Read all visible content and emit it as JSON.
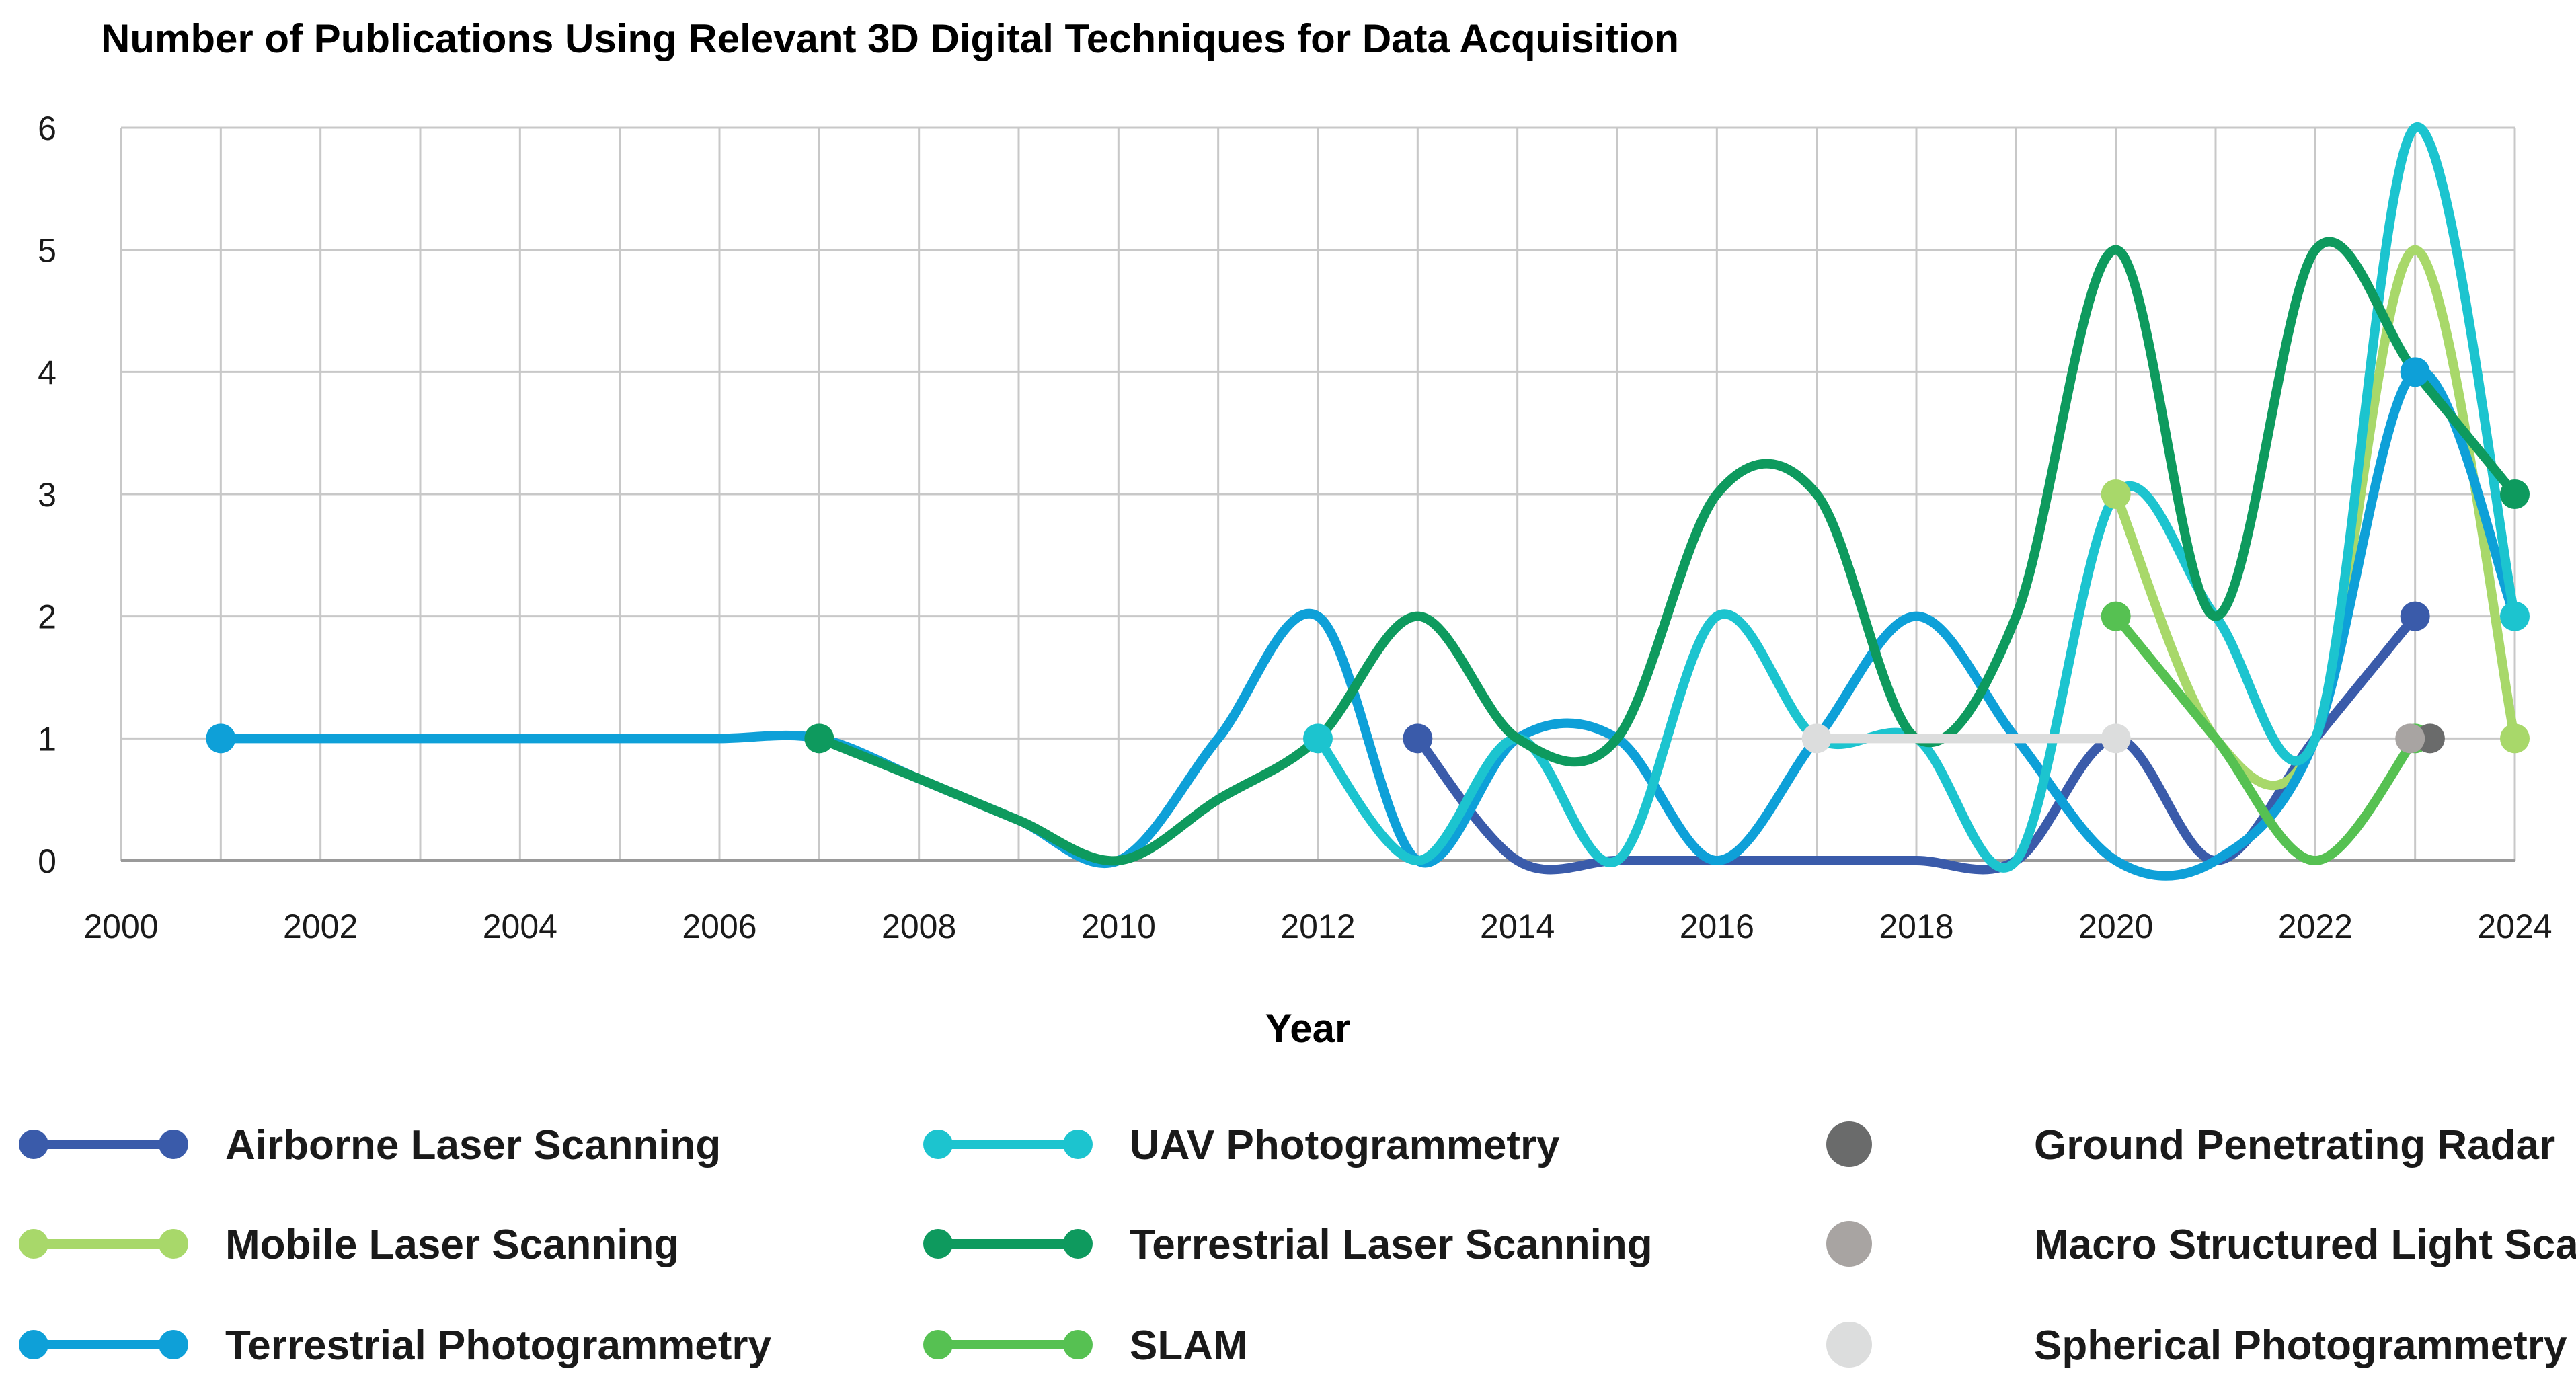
{
  "chart_data": {
    "type": "line",
    "title": "Number of Publications Using Relevant 3D Digital Techniques for Data Acquisition",
    "xlabel": "Year",
    "ylabel": "",
    "xlim": [
      2000,
      2024
    ],
    "ylim": [
      0,
      6
    ],
    "x_ticks": [
      2000,
      2002,
      2004,
      2006,
      2008,
      2010,
      2012,
      2014,
      2016,
      2018,
      2020,
      2022,
      2024
    ],
    "y_ticks": [
      0,
      1,
      2,
      3,
      4,
      5,
      6
    ],
    "grid": true,
    "legend_position": "bottom",
    "series": [
      {
        "name": "Airborne Laser Scanning",
        "color": "#3A5BAA",
        "x": [
          2013,
          2014,
          2015,
          2016,
          2017,
          2018,
          2019,
          2020,
          2021,
          2022,
          2023
        ],
        "y": [
          1,
          0,
          0,
          0,
          0,
          0,
          0,
          1,
          0,
          1,
          2
        ],
        "markers": [
          2013,
          2023
        ]
      },
      {
        "name": "Mobile Laser Scanning",
        "color": "#A8D86A",
        "x": [
          2020,
          2021,
          2022,
          2023,
          2024
        ],
        "y": [
          3,
          1,
          1,
          5,
          1
        ],
        "markers": [
          2020,
          2024
        ]
      },
      {
        "name": "Terrestrial Photogrammetry",
        "color": "#0EA0D8",
        "x": [
          2001,
          2002,
          2003,
          2004,
          2005,
          2006,
          2007,
          2008,
          2009,
          2010,
          2011,
          2012,
          2013,
          2014,
          2015,
          2016,
          2017,
          2018,
          2019,
          2020,
          2021,
          2022,
          2023,
          2024
        ],
        "y": [
          1,
          1,
          1,
          1,
          1,
          1,
          1,
          0.67,
          0.33,
          0,
          1,
          2,
          0,
          1,
          1,
          0,
          1,
          2,
          1,
          0,
          0,
          1,
          4,
          2
        ],
        "markers": [
          2001,
          2023
        ]
      },
      {
        "name": "UAV Photogrammetry",
        "color": "#1CC4CF",
        "x": [
          2012,
          2013,
          2014,
          2015,
          2016,
          2017,
          2018,
          2019,
          2020,
          2021,
          2022,
          2023,
          2024
        ],
        "y": [
          1,
          0,
          1,
          0,
          2,
          1,
          1,
          0,
          3,
          2,
          1,
          6,
          2
        ],
        "markers": [
          2012,
          2024
        ]
      },
      {
        "name": "Terrestrial Laser Scanning",
        "color": "#0E9A5E",
        "x": [
          2007,
          2008,
          2009,
          2010,
          2011,
          2012,
          2013,
          2014,
          2015,
          2016,
          2017,
          2018,
          2019,
          2020,
          2021,
          2022,
          2023,
          2024
        ],
        "y": [
          1,
          0.67,
          0.33,
          0,
          0.5,
          1,
          2,
          1,
          1,
          3,
          3,
          1,
          2,
          5,
          2,
          5,
          4,
          3
        ],
        "markers": [
          2007,
          2024
        ]
      },
      {
        "name": "SLAM",
        "color": "#56C152",
        "x": [
          2020,
          2021,
          2022,
          2023
        ],
        "y": [
          2,
          1,
          0,
          1
        ],
        "markers": [
          2020,
          2023
        ]
      },
      {
        "name": "Ground Penetrating Radar",
        "color": "#6A6B6B",
        "x": [
          2023.15
        ],
        "y": [
          1
        ],
        "markers": [
          2023.15
        ]
      },
      {
        "name": "Macro Structured Light Scanning",
        "color": "#A8A4A2",
        "x": [
          2022.95
        ],
        "y": [
          1
        ],
        "markers": [
          2022.95
        ]
      },
      {
        "name": "Spherical Photogrammetry",
        "color": "#DCDDDD",
        "x": [
          2017,
          2020
        ],
        "y": [
          1,
          1
        ],
        "markers": [
          2017,
          2020
        ]
      }
    ]
  },
  "legend": {
    "items": [
      {
        "label": "Airborne Laser Scanning",
        "color": "#3A5BAA",
        "style": "line"
      },
      {
        "label": "UAV Photogrammetry",
        "color": "#1CC4CF",
        "style": "line"
      },
      {
        "label": "Ground Penetrating Radar",
        "color": "#6A6B6B",
        "style": "dot"
      },
      {
        "label": "Mobile Laser Scanning",
        "color": "#A8D86A",
        "style": "line"
      },
      {
        "label": "Terrestrial Laser Scanning",
        "color": "#0E9A5E",
        "style": "line"
      },
      {
        "label": "Macro Structured Light Scanning",
        "color": "#A8A4A2",
        "style": "dot"
      },
      {
        "label": "Terrestrial Photogrammetry",
        "color": "#0EA0D8",
        "style": "line"
      },
      {
        "label": "SLAM",
        "color": "#56C152",
        "style": "line"
      },
      {
        "label": "Spherical Photogrammetry",
        "color": "#DCDDDD",
        "style": "dot"
      }
    ]
  }
}
